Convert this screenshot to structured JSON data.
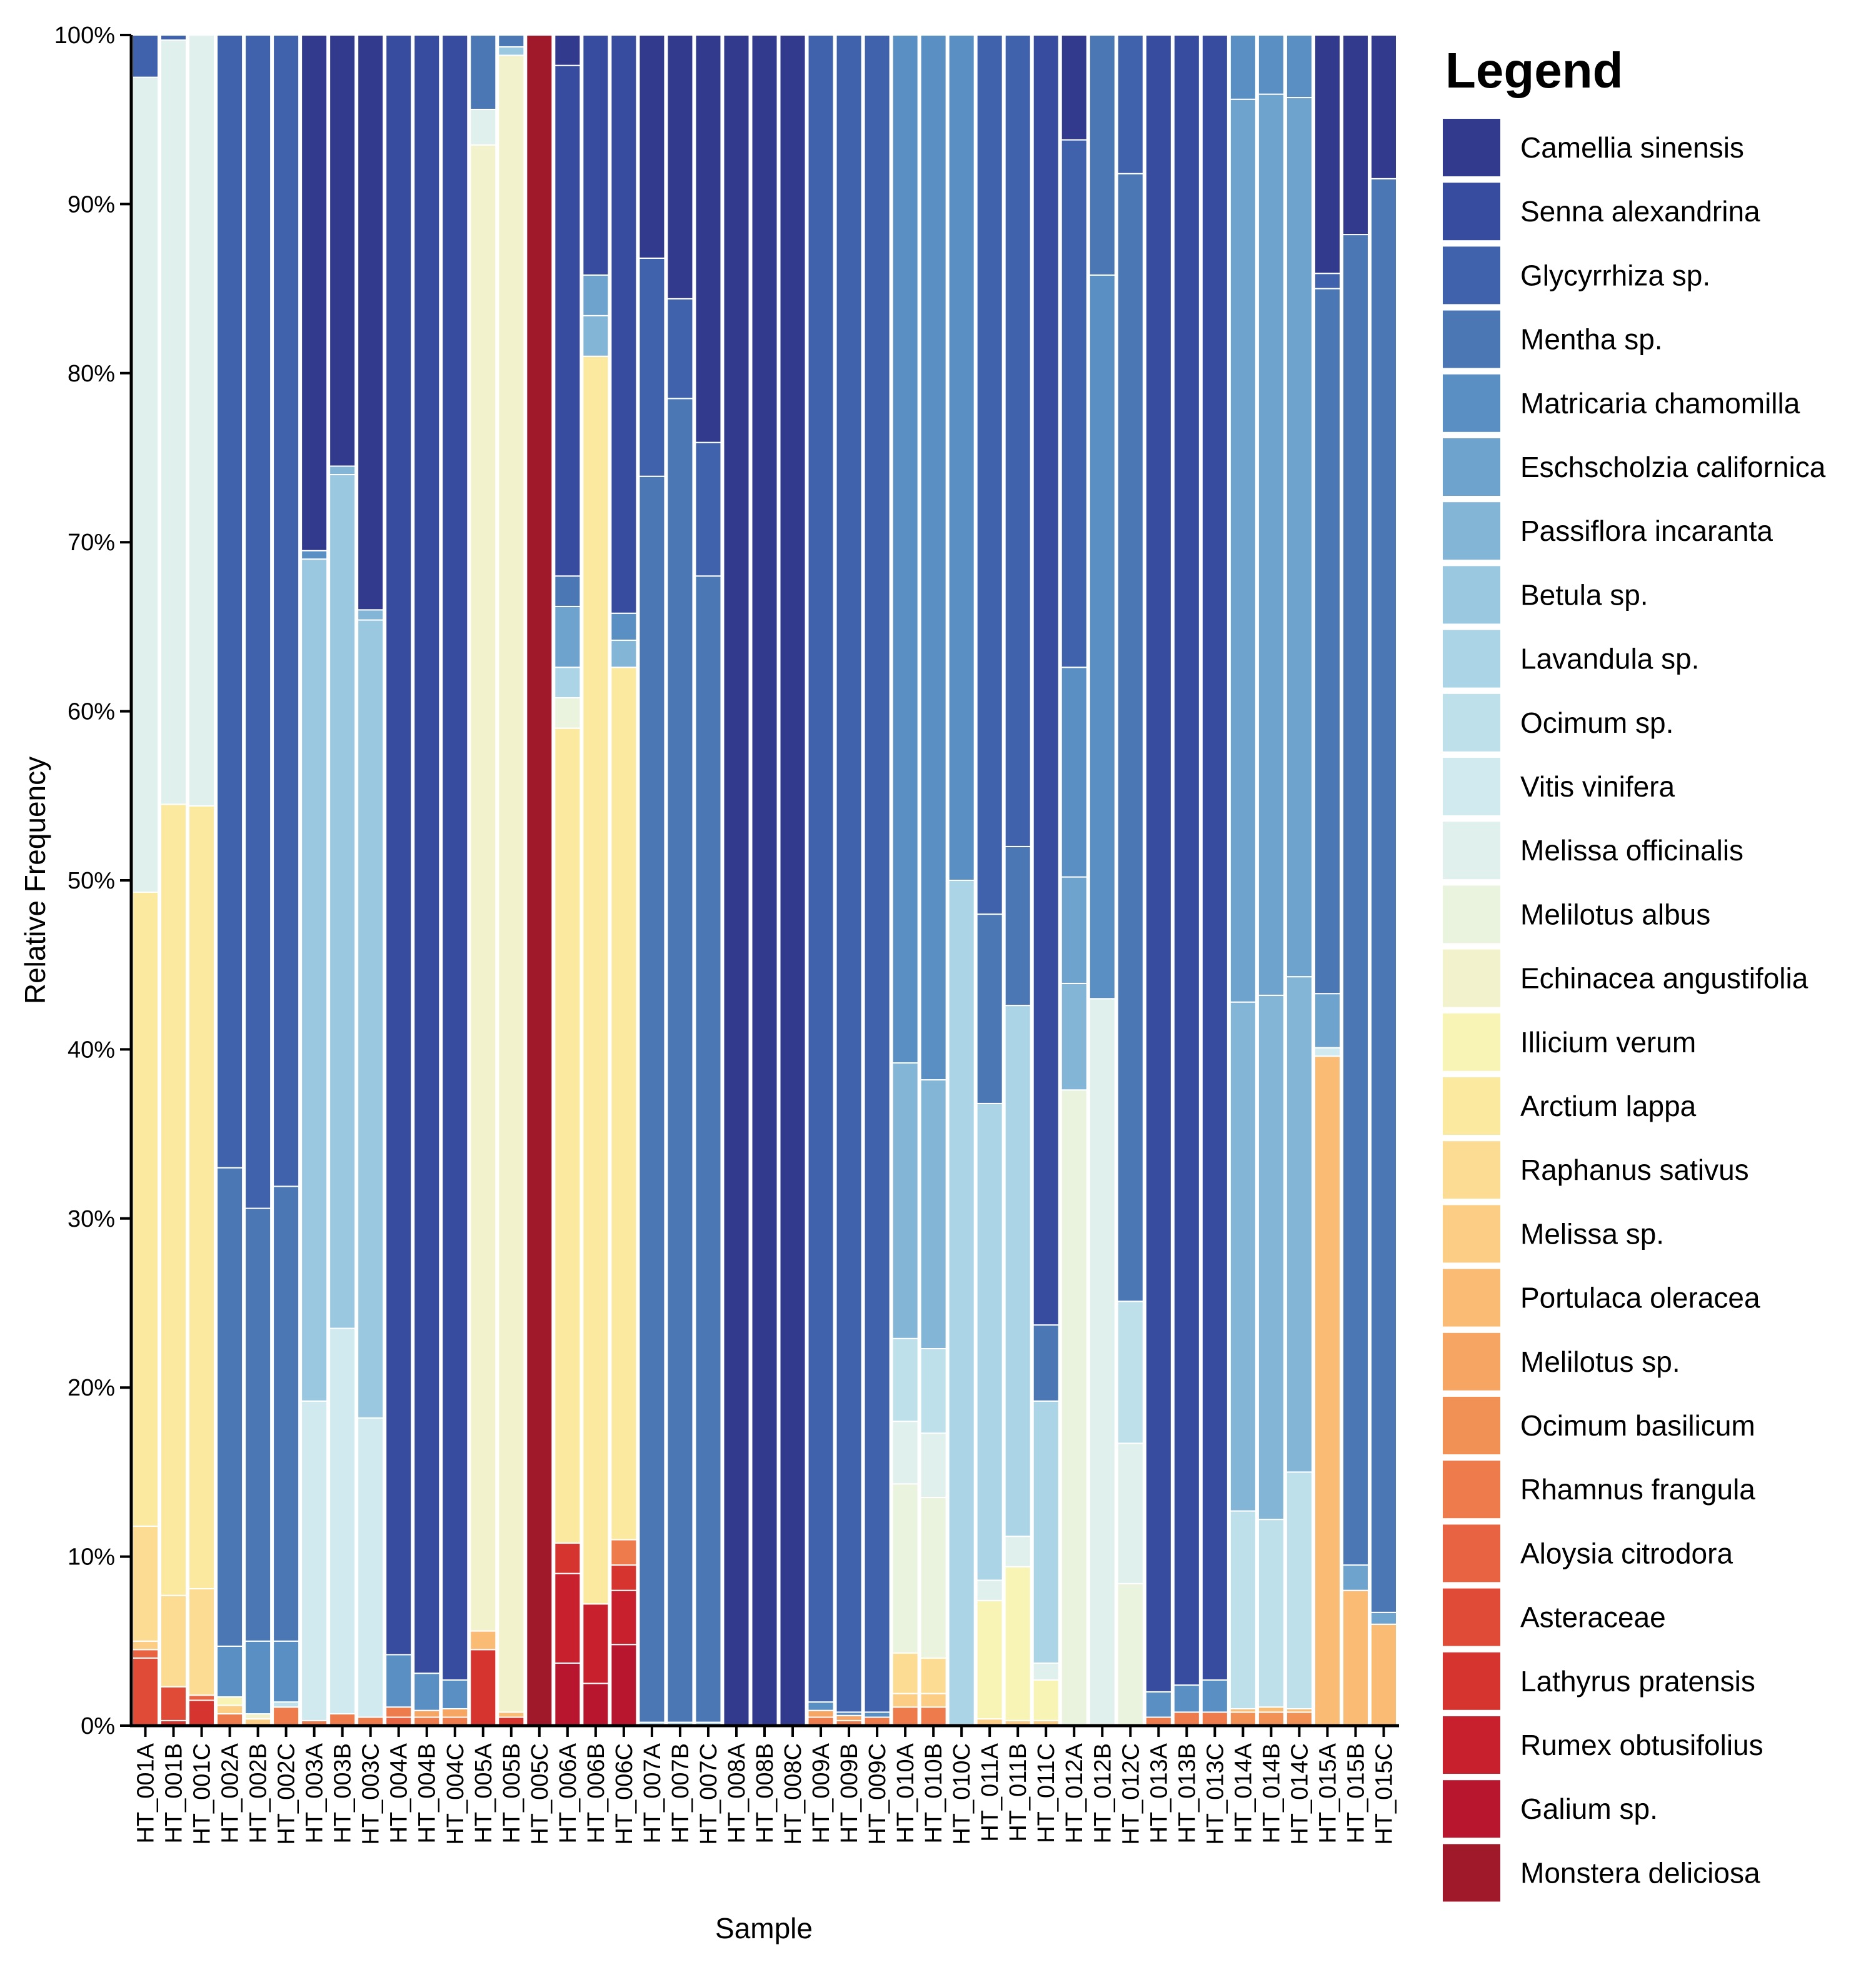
{
  "chart_data": {
    "type": "bar",
    "stacked": true,
    "xlabel": "Sample",
    "ylabel": "Relative Frequency",
    "ylim": [
      0,
      100
    ],
    "yticks": [
      "0%",
      "10%",
      "20%",
      "30%",
      "40%",
      "50%",
      "60%",
      "70%",
      "80%",
      "90%",
      "100%"
    ],
    "legend_title": "Legend",
    "legend_position": "right",
    "species": [
      {
        "name": "Camellia sinensis",
        "color": "#313a8d"
      },
      {
        "name": "Senna alexandrina",
        "color": "#374c9e"
      },
      {
        "name": "Glycyrrhiza sp.",
        "color": "#4061ab"
      },
      {
        "name": "Mentha sp.",
        "color": "#4b78b5"
      },
      {
        "name": "Matricaria chamomilla",
        "color": "#5a8fc3"
      },
      {
        "name": "Eschscholzia californica",
        "color": "#6ea3cd"
      },
      {
        "name": "Passiflora incaranta",
        "color": "#83b5d7"
      },
      {
        "name": "Betula sp.",
        "color": "#9ac8e0"
      },
      {
        "name": "Lavandula sp.",
        "color": "#abd4e6"
      },
      {
        "name": "Ocimum sp.",
        "color": "#bde0eb"
      },
      {
        "name": "Vitis vinifera",
        "color": "#d1eaf0"
      },
      {
        "name": "Melissa officinalis",
        "color": "#e0f0ec"
      },
      {
        "name": "Melilotus albus",
        "color": "#eaf3dd"
      },
      {
        "name": "Echinacea angustifolia",
        "color": "#f2f3cc"
      },
      {
        "name": "Illicium verum",
        "color": "#f8f4b6"
      },
      {
        "name": "Arctium lappa",
        "color": "#fbe9a0"
      },
      {
        "name": "Raphanus sativus",
        "color": "#fcdc92"
      },
      {
        "name": "Melissa sp.",
        "color": "#fccd85"
      },
      {
        "name": "Portulaca oleracea",
        "color": "#fabc74"
      },
      {
        "name": "Melilotus sp.",
        "color": "#f6a662"
      },
      {
        "name": "Ocimum basilicum",
        "color": "#f29155"
      },
      {
        "name": "Rhamnus frangula",
        "color": "#ed7b4b"
      },
      {
        "name": "Aloysia citrodora",
        "color": "#e86341"
      },
      {
        "name": "Asteraceae",
        "color": "#e04b37"
      },
      {
        "name": "Lathyrus pratensis",
        "color": "#d6342f"
      },
      {
        "name": "Rumex obtusifolius",
        "color": "#c8202c"
      },
      {
        "name": "Galium sp.",
        "color": "#b8162f"
      },
      {
        "name": "Monstera deliciosa",
        "color": "#a0192b"
      }
    ],
    "samples": [
      {
        "name": "HT_001A",
        "values": {
          "Asteraceae": 4.0,
          "Aloysia citrodora": 0.5,
          "Melissa sp.": 0.5,
          "Raphanus sativus": 6.8,
          "Arctium lappa": 37.5,
          "Melissa officinalis": 48.2,
          "Glycyrrhiza sp.": 2.5
        }
      },
      {
        "name": "HT_001B",
        "values": {
          "Asteraceae": 2.0,
          "Lathyrus pratensis": 0.3,
          "Raphanus sativus": 5.4,
          "Arctium lappa": 46.8,
          "Melissa officinalis": 45.2,
          "Glycyrrhiza sp.": 0.3
        }
      },
      {
        "name": "HT_001C",
        "values": {
          "Lathyrus pratensis": 1.5,
          "Aloysia citrodora": 0.3,
          "Raphanus sativus": 6.3,
          "Arctium lappa": 46.3,
          "Melissa officinalis": 45.6
        }
      },
      {
        "name": "HT_002A",
        "values": {
          "Rhamnus frangula": 0.7,
          "Melissa sp.": 0.5,
          "Illicium verum": 0.5,
          "Matricaria chamomilla": 3.0,
          "Mentha sp.": 28.3,
          "Glycyrrhiza sp.": 67.0
        }
      },
      {
        "name": "HT_002B",
        "values": {
          "Melissa sp.": 0.4,
          "Echinacea angustifolia": 0.3,
          "Matricaria chamomilla": 4.3,
          "Mentha sp.": 25.6,
          "Glycyrrhiza sp.": 69.4
        }
      },
      {
        "name": "HT_002C",
        "values": {
          "Rhamnus frangula": 1.1,
          "Ocimum sp.": 0.3,
          "Matricaria chamomilla": 3.6,
          "Mentha sp.": 26.9,
          "Glycyrrhiza sp.": 68.1
        }
      },
      {
        "name": "HT_003A",
        "values": {
          "Rhamnus frangula": 0.3,
          "Vitis vinifera": 18.9,
          "Betula sp.": 49.8,
          "Matricaria chamomilla": 0.5,
          "Camellia sinensis": 30.5
        }
      },
      {
        "name": "HT_003B",
        "values": {
          "Rhamnus frangula": 0.7,
          "Vitis vinifera": 22.8,
          "Betula sp.": 50.5,
          "Passiflora incaranta": 0.5,
          "Camellia sinensis": 25.5
        }
      },
      {
        "name": "HT_003C",
        "values": {
          "Rhamnus frangula": 0.5,
          "Vitis vinifera": 17.7,
          "Betula sp.": 47.2,
          "Passiflora incaranta": 0.6,
          "Camellia sinensis": 34.0
        }
      },
      {
        "name": "HT_004A",
        "values": {
          "Aloysia citrodora": 0.5,
          "Rhamnus frangula": 0.6,
          "Matricaria chamomilla": 3.1,
          "Senna alexandrina": 95.8
        }
      },
      {
        "name": "HT_004B",
        "values": {
          "Rhamnus frangula": 0.5,
          "Melilotus sp.": 0.4,
          "Matricaria chamomilla": 2.2,
          "Senna alexandrina": 96.9
        }
      },
      {
        "name": "HT_004C",
        "values": {
          "Rhamnus frangula": 0.5,
          "Melilotus sp.": 0.5,
          "Matricaria chamomilla": 1.7,
          "Senna alexandrina": 97.3
        }
      },
      {
        "name": "HT_005A",
        "values": {
          "Lathyrus pratensis": 4.5,
          "Portulaca oleracea": 1.1,
          "Echinacea angustifolia": 87.9,
          "Melissa officinalis": 2.1,
          "Mentha sp.": 4.4
        }
      },
      {
        "name": "HT_005B",
        "values": {
          "Lathyrus pratensis": 0.5,
          "Portulaca oleracea": 0.3,
          "Echinacea angustifolia": 98.0,
          "Betula sp.": 0.5,
          "Mentha sp.": 0.7
        }
      },
      {
        "name": "HT_005C",
        "values": {
          "Monstera deliciosa": 100
        }
      },
      {
        "name": "HT_006A",
        "values": {
          "Galium sp.": 3.7,
          "Rumex obtusifolius": 5.3,
          "Lathyrus pratensis": 1.8,
          "Arctium lappa": 48.2,
          "Melilotus albus": 1.8,
          "Lavandula sp.": 1.8,
          "Eschscholzia californica": 3.6,
          "Mentha sp.": 1.8,
          "Senna alexandrina": 30.2,
          "Camellia sinensis": 1.8
        }
      },
      {
        "name": "HT_006B",
        "values": {
          "Galium sp.": 2.5,
          "Rumex obtusifolius": 4.7,
          "Arctium lappa": 73.8,
          "Passiflora incaranta": 2.4,
          "Eschscholzia californica": 2.4,
          "Senna alexandrina": 14.2
        }
      },
      {
        "name": "HT_006C",
        "values": {
          "Galium sp.": 4.8,
          "Rumex obtusifolius": 3.2,
          "Lathyrus pratensis": 1.5,
          "Rhamnus frangula": 1.5,
          "Arctium lappa": 51.6,
          "Passiflora incaranta": 1.6,
          "Matricaria chamomilla": 1.6,
          "Senna alexandrina": 34.2
        }
      },
      {
        "name": "HT_007A",
        "values": {
          "Ocimum sp.": 0.2,
          "Mentha sp.": 73.7,
          "Glycyrrhiza sp.": 12.9,
          "Camellia sinensis": 13.2
        }
      },
      {
        "name": "HT_007B",
        "values": {
          "Ocimum sp.": 0.2,
          "Mentha sp.": 78.3,
          "Glycyrrhiza sp.": 5.9,
          "Camellia sinensis": 15.6
        }
      },
      {
        "name": "HT_007C",
        "values": {
          "Ocimum sp.": 0.2,
          "Mentha sp.": 67.8,
          "Glycyrrhiza sp.": 7.9,
          "Camellia sinensis": 24.1
        }
      },
      {
        "name": "HT_008A",
        "values": {
          "Camellia sinensis": 100
        }
      },
      {
        "name": "HT_008B",
        "values": {
          "Camellia sinensis": 100
        }
      },
      {
        "name": "HT_008C",
        "values": {
          "Camellia sinensis": 100
        }
      },
      {
        "name": "HT_009A",
        "values": {
          "Rhamnus frangula": 0.5,
          "Melilotus sp.": 0.4,
          "Matricaria chamomilla": 0.5,
          "Glycyrrhiza sp.": 98.6
        }
      },
      {
        "name": "HT_009B",
        "values": {
          "Rhamnus frangula": 0.3,
          "Melilotus sp.": 0.3,
          "Matricaria chamomilla": 0.2,
          "Glycyrrhiza sp.": 99.2
        }
      },
      {
        "name": "HT_009C",
        "values": {
          "Rhamnus frangula": 0.5,
          "Matricaria chamomilla": 0.3,
          "Glycyrrhiza sp.": 99.2
        }
      },
      {
        "name": "HT_010A",
        "values": {
          "Rhamnus frangula": 1.1,
          "Melissa sp.": 0.8,
          "Raphanus sativus": 2.4,
          "Melilotus albus": 10.0,
          "Melissa officinalis": 3.7,
          "Ocimum sp.": 4.9,
          "Passiflora incaranta": 16.3,
          "Matricaria chamomilla": 60.8
        }
      },
      {
        "name": "HT_010B",
        "values": {
          "Rhamnus frangula": 1.1,
          "Melissa sp.": 0.8,
          "Raphanus sativus": 2.1,
          "Melilotus albus": 9.5,
          "Melissa officinalis": 3.8,
          "Ocimum sp.": 5.0,
          "Passiflora incaranta": 15.9,
          "Matricaria chamomilla": 61.8
        }
      },
      {
        "name": "HT_010C",
        "values": {
          "Lavandula sp.": 50.0,
          "Matricaria chamomilla": 50.0
        }
      },
      {
        "name": "HT_011A",
        "values": {
          "Melissa sp.": 0.4,
          "Illicium verum": 7.0,
          "Melissa officinalis": 1.2,
          "Lavandula sp.": 28.2,
          "Mentha sp.": 11.2,
          "Glycyrrhiza sp.": 52.0
        }
      },
      {
        "name": "HT_011B",
        "values": {
          "Melissa sp.": 0.3,
          "Illicium verum": 9.1,
          "Melissa officinalis": 1.8,
          "Lavandula sp.": 31.4,
          "Mentha sp.": 9.4,
          "Glycyrrhiza sp.": 48.0
        }
      },
      {
        "name": "HT_011C",
        "values": {
          "Melissa sp.": 0.3,
          "Illicium verum": 2.4,
          "Melissa officinalis": 1.0,
          "Lavandula sp.": 15.5,
          "Mentha sp.": 4.5,
          "Senna alexandrina": 76.3
        }
      },
      {
        "name": "HT_012A",
        "values": {
          "Melilotus albus": 37.6,
          "Passiflora incaranta": 6.3,
          "Eschscholzia californica": 6.3,
          "Matricaria chamomilla": 12.4,
          "Glycyrrhiza sp.": 31.2,
          "Camellia sinensis": 6.2
        }
      },
      {
        "name": "HT_012B",
        "values": {
          "Melissa officinalis": 43.0,
          "Matricaria chamomilla": 42.8,
          "Mentha sp.": 14.2
        }
      },
      {
        "name": "HT_012C",
        "values": {
          "Melilotus albus": 8.4,
          "Melissa officinalis": 8.3,
          "Ocimum sp.": 8.4,
          "Mentha sp.": 66.7,
          "Glycyrrhiza sp.": 8.2
        }
      },
      {
        "name": "HT_013A",
        "values": {
          "Rhamnus frangula": 0.5,
          "Matricaria chamomilla": 1.5,
          "Senna alexandrina": 98.0
        }
      },
      {
        "name": "HT_013B",
        "values": {
          "Rhamnus frangula": 0.8,
          "Matricaria chamomilla": 1.6,
          "Senna alexandrina": 97.6
        }
      },
      {
        "name": "HT_013C",
        "values": {
          "Rhamnus frangula": 0.8,
          "Matricaria chamomilla": 1.9,
          "Senna alexandrina": 97.3
        }
      },
      {
        "name": "HT_014A",
        "values": {
          "Ocimum basilicum": 0.8,
          "Portulaca oleracea": 0.2,
          "Ocimum sp.": 11.7,
          "Passiflora incaranta": 30.1,
          "Eschscholzia californica": 53.4,
          "Matricaria chamomilla": 3.8
        }
      },
      {
        "name": "HT_014B",
        "values": {
          "Ocimum basilicum": 0.8,
          "Portulaca oleracea": 0.3,
          "Ocimum sp.": 11.1,
          "Passiflora incaranta": 31.0,
          "Eschscholzia californica": 53.3,
          "Matricaria chamomilla": 3.5
        }
      },
      {
        "name": "HT_014C",
        "values": {
          "Ocimum basilicum": 0.8,
          "Portulaca oleracea": 0.2,
          "Ocimum sp.": 14.0,
          "Passiflora incaranta": 29.3,
          "Eschscholzia californica": 52.0,
          "Matricaria chamomilla": 3.7
        }
      },
      {
        "name": "HT_015A",
        "values": {
          "Portulaca oleracea": 39.6,
          "Vitis vinifera": 0.5,
          "Eschscholzia californica": 3.2,
          "Mentha sp.": 41.7,
          "Glycyrrhiza sp.": 0.9,
          "Camellia sinensis": 14.1
        }
      },
      {
        "name": "HT_015B",
        "values": {
          "Portulaca oleracea": 8.0,
          "Eschscholzia californica": 1.5,
          "Mentha sp.": 78.7,
          "Camellia sinensis": 11.8
        }
      },
      {
        "name": "HT_015C",
        "values": {
          "Portulaca oleracea": 6.0,
          "Eschscholzia californica": 0.7,
          "Mentha sp.": 84.8,
          "Camellia sinensis": 8.5
        }
      }
    ]
  }
}
